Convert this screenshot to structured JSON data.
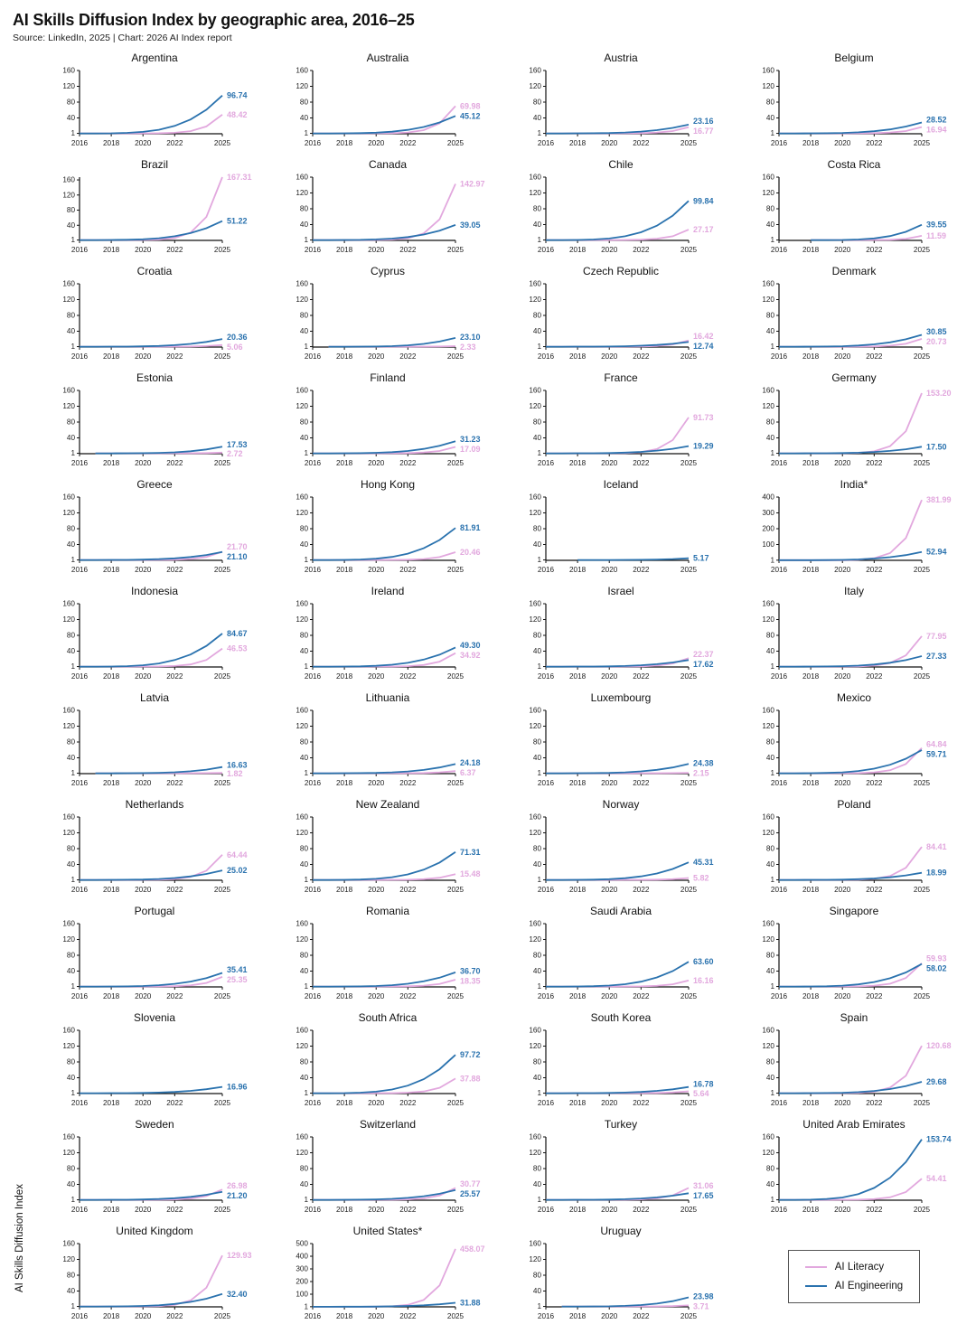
{
  "header": {
    "title": "AI Skills Diffusion Index by geographic area, 2016–25",
    "subtitle": "Source: LinkedIn, 2025 | Chart: 2026 AI Index report"
  },
  "chart_data": {
    "type": "line",
    "title": "AI Skills Diffusion Index by geographic area, 2016–25",
    "ylabel": "AI Skills Diffusion Index",
    "x": [
      2016,
      2017,
      2018,
      2019,
      2020,
      2021,
      2022,
      2023,
      2024,
      2025
    ],
    "x_tick_labels": [
      "2016",
      "2018",
      "2020",
      "2022",
      "2025"
    ],
    "x_tick_years": [
      2016,
      2018,
      2020,
      2022,
      2025
    ],
    "default_y_ticks": [
      1,
      40,
      80,
      120,
      160
    ],
    "colors": {
      "literacy": "#e2a8de",
      "engineering": "#2a72ae"
    },
    "legend": [
      {
        "name": "AI Literacy",
        "key": "literacy"
      },
      {
        "name": "AI Engineering",
        "key": "engineering"
      }
    ],
    "panels": [
      {
        "name": "Argentina",
        "engineering_2025": 96.74,
        "literacy_2025": 48.42
      },
      {
        "name": "Australia",
        "engineering_2025": 45.12,
        "literacy_2025": 69.98
      },
      {
        "name": "Austria",
        "engineering_2025": 23.16,
        "literacy_2025": 16.77
      },
      {
        "name": "Belgium",
        "engineering_2025": 28.52,
        "literacy_2025": 16.94
      },
      {
        "name": "Brazil",
        "engineering_2025": 51.22,
        "literacy_2025": 167.31
      },
      {
        "name": "Canada",
        "engineering_2025": 39.05,
        "literacy_2025": 142.97
      },
      {
        "name": "Chile",
        "engineering_2025": 99.84,
        "literacy_2025": 27.17
      },
      {
        "name": "Costa Rica",
        "engineering_2025": 39.55,
        "literacy_2025": 11.59,
        "start_year": 2018
      },
      {
        "name": "Croatia",
        "engineering_2025": 20.36,
        "literacy_2025": 5.06
      },
      {
        "name": "Cyprus",
        "engineering_2025": 23.1,
        "literacy_2025": 2.33,
        "start_year": 2017
      },
      {
        "name": "Czech Republic",
        "engineering_2025": 12.74,
        "literacy_2025": 16.42
      },
      {
        "name": "Denmark",
        "engineering_2025": 30.85,
        "literacy_2025": 20.73
      },
      {
        "name": "Estonia",
        "engineering_2025": 17.53,
        "literacy_2025": 2.72,
        "start_year": 2017
      },
      {
        "name": "Finland",
        "engineering_2025": 31.23,
        "literacy_2025": 17.09
      },
      {
        "name": "France",
        "engineering_2025": 19.29,
        "literacy_2025": 91.73
      },
      {
        "name": "Germany",
        "engineering_2025": 17.5,
        "literacy_2025": 153.2
      },
      {
        "name": "Greece",
        "engineering_2025": 21.1,
        "literacy_2025": 21.7
      },
      {
        "name": "Hong Kong",
        "engineering_2025": 81.91,
        "literacy_2025": 20.46
      },
      {
        "name": "Iceland",
        "engineering_2025": 5.17,
        "literacy_2025": null,
        "start_year": 2018
      },
      {
        "name": "India*",
        "engineering_2025": 52.94,
        "literacy_2025": 381.99,
        "y_ticks": [
          1,
          100,
          200,
          300,
          400
        ]
      },
      {
        "name": "Indonesia",
        "engineering_2025": 84.67,
        "literacy_2025": 46.53
      },
      {
        "name": "Ireland",
        "engineering_2025": 49.3,
        "literacy_2025": 34.92
      },
      {
        "name": "Israel",
        "engineering_2025": 17.62,
        "literacy_2025": 22.37
      },
      {
        "name": "Italy",
        "engineering_2025": 27.33,
        "literacy_2025": 77.95
      },
      {
        "name": "Latvia",
        "engineering_2025": 16.63,
        "literacy_2025": 1.82,
        "start_year": 2017
      },
      {
        "name": "Lithuania",
        "engineering_2025": 24.18,
        "literacy_2025": 6.37
      },
      {
        "name": "Luxembourg",
        "engineering_2025": 24.38,
        "literacy_2025": 2.15
      },
      {
        "name": "Mexico",
        "engineering_2025": 59.71,
        "literacy_2025": 64.84
      },
      {
        "name": "Netherlands",
        "engineering_2025": 25.02,
        "literacy_2025": 64.44
      },
      {
        "name": "New Zealand",
        "engineering_2025": 71.31,
        "literacy_2025": 15.48
      },
      {
        "name": "Norway",
        "engineering_2025": 45.31,
        "literacy_2025": 5.82
      },
      {
        "name": "Poland",
        "engineering_2025": 18.99,
        "literacy_2025": 84.41
      },
      {
        "name": "Portugal",
        "engineering_2025": 35.41,
        "literacy_2025": 25.35
      },
      {
        "name": "Romania",
        "engineering_2025": 36.7,
        "literacy_2025": 18.35
      },
      {
        "name": "Saudi Arabia",
        "engineering_2025": 63.6,
        "literacy_2025": 16.16
      },
      {
        "name": "Singapore",
        "engineering_2025": 58.02,
        "literacy_2025": 59.93
      },
      {
        "name": "Slovenia",
        "engineering_2025": 16.96,
        "literacy_2025": null
      },
      {
        "name": "South Africa",
        "engineering_2025": 97.72,
        "literacy_2025": 37.88
      },
      {
        "name": "South Korea",
        "engineering_2025": 16.78,
        "literacy_2025": 5.64
      },
      {
        "name": "Spain",
        "engineering_2025": 29.68,
        "literacy_2025": 120.68
      },
      {
        "name": "Sweden",
        "engineering_2025": 21.2,
        "literacy_2025": 26.98
      },
      {
        "name": "Switzerland",
        "engineering_2025": 25.57,
        "literacy_2025": 30.77
      },
      {
        "name": "Turkey",
        "engineering_2025": 17.65,
        "literacy_2025": 31.06
      },
      {
        "name": "United Arab Emirates",
        "engineering_2025": 153.74,
        "literacy_2025": 54.41
      },
      {
        "name": "United Kingdom",
        "engineering_2025": 32.4,
        "literacy_2025": 129.93
      },
      {
        "name": "United States*",
        "engineering_2025": 31.88,
        "literacy_2025": 458.07,
        "y_ticks": [
          1,
          100,
          200,
          300,
          400,
          500
        ]
      },
      {
        "name": "Uruguay",
        "engineering_2025": 23.98,
        "literacy_2025": 3.71,
        "start_year": 2017
      }
    ]
  }
}
